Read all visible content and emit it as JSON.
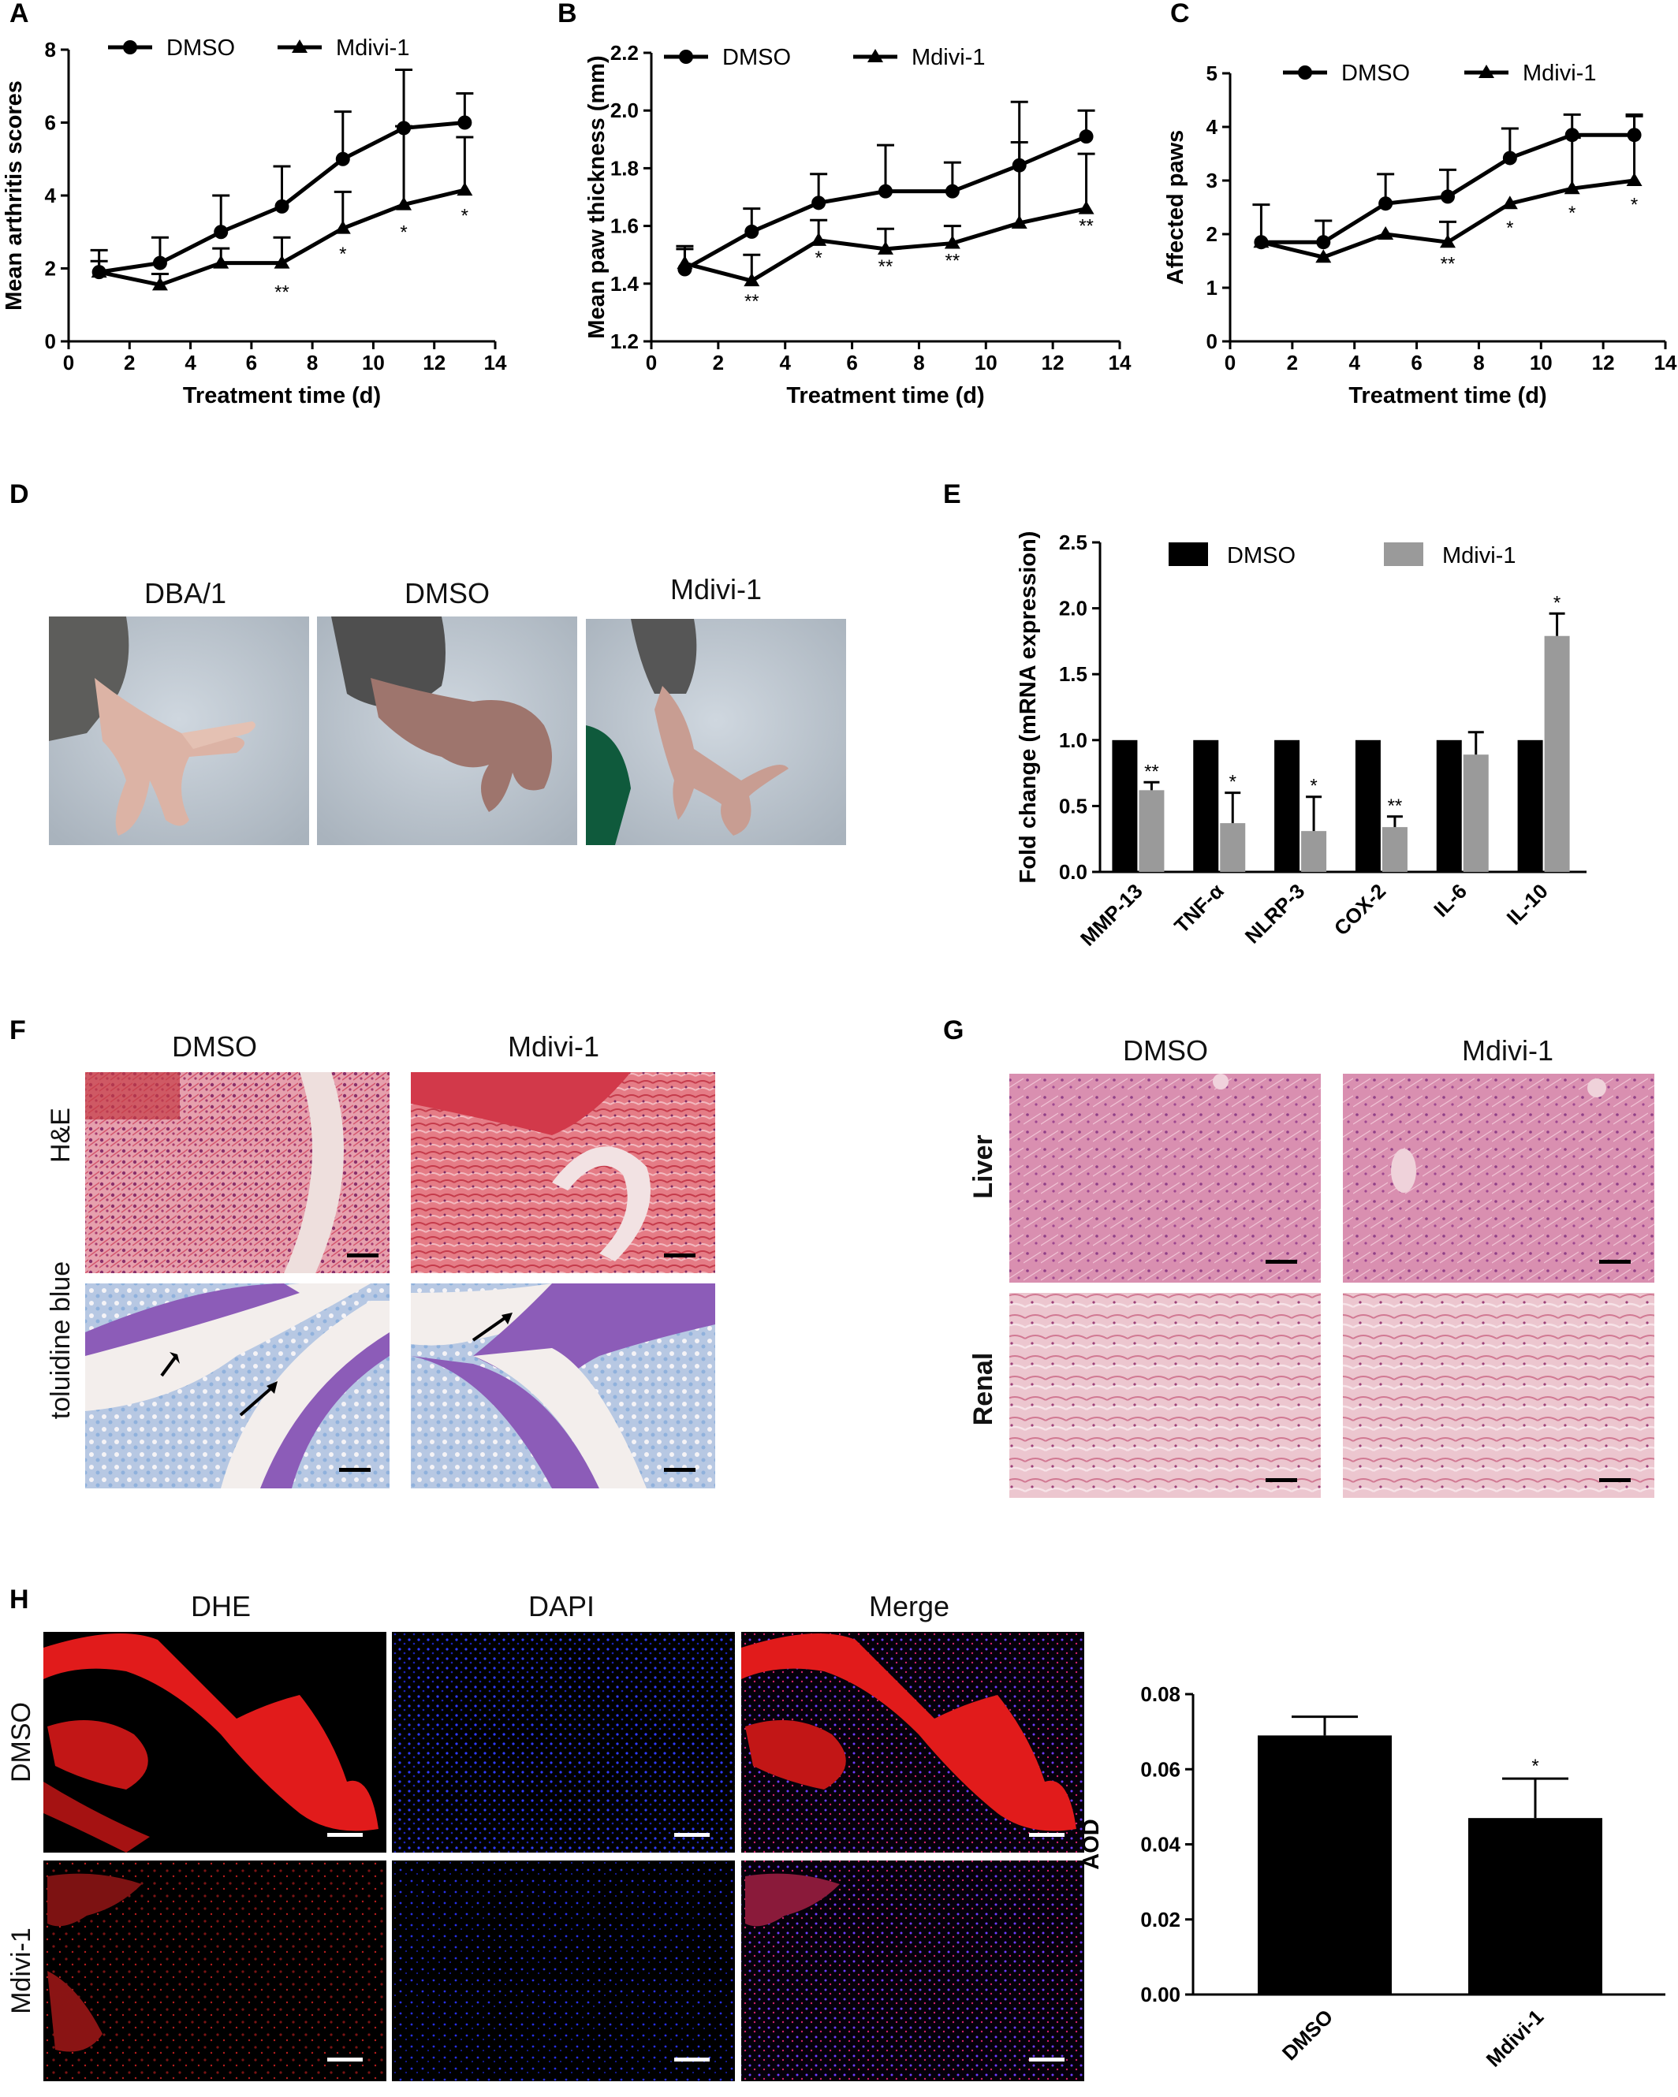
{
  "panels": {
    "A": "A",
    "B": "B",
    "C": "C",
    "D": "D",
    "E": "E",
    "F": "F",
    "G": "G",
    "H": "H"
  },
  "colors": {
    "dmso_bar": "#000000",
    "mdivi_bar": "#9a9a9a",
    "he_stain": "#d46a7e",
    "toluidine": "#8a5fb5",
    "liver": "#d68aa8",
    "renal": "#e7b9c6",
    "dhe": "#e0191a",
    "dapi": "#2a34e0"
  },
  "chart_data": [
    {
      "id": "A",
      "type": "line",
      "xlabel": "Treatment time (d)",
      "ylabel": "Mean arthritis scores",
      "xlim": [
        0,
        14
      ],
      "ylim": [
        0,
        8
      ],
      "xticks": [
        0,
        2,
        4,
        6,
        8,
        10,
        12,
        14
      ],
      "yticks": [
        0,
        2,
        4,
        6,
        8
      ],
      "legend": "top",
      "x": [
        1,
        3,
        5,
        7,
        9,
        11,
        13
      ],
      "series": [
        {
          "name": "DMSO",
          "marker": "circle",
          "values": [
            1.9,
            2.15,
            3.0,
            3.7,
            5.0,
            5.85,
            6.0
          ],
          "err": [
            0.6,
            0.7,
            1.0,
            1.1,
            1.3,
            1.6,
            0.8
          ]
        },
        {
          "name": "Mdivi-1",
          "marker": "triangle",
          "values": [
            1.9,
            1.55,
            2.15,
            2.15,
            3.1,
            3.75,
            4.15
          ],
          "err": [
            0.3,
            0.3,
            0.4,
            0.7,
            1.0,
            2.15,
            1.45
          ]
        }
      ],
      "significance": [
        {
          "x": 7,
          "text": "**",
          "y": 1.35
        },
        {
          "x": 9,
          "text": "*",
          "y": 2.4
        },
        {
          "x": 11,
          "text": "*",
          "y": 3.0
        },
        {
          "x": 13,
          "text": "*",
          "y": 3.45
        }
      ]
    },
    {
      "id": "B",
      "type": "line",
      "xlabel": "Treatment time (d)",
      "ylabel": "Mean paw thickness (mm)",
      "xlim": [
        0,
        14
      ],
      "ylim": [
        1.2,
        2.2
      ],
      "xticks": [
        0,
        2,
        4,
        6,
        8,
        10,
        12,
        14
      ],
      "yticks": [
        1.2,
        1.4,
        1.6,
        1.8,
        2.0,
        2.2
      ],
      "ytick_labels": [
        "1.2",
        "1.4",
        "1.6",
        "1.8",
        "2.0",
        "2.2"
      ],
      "legend": "top",
      "x": [
        1,
        3,
        5,
        7,
        9,
        11,
        13
      ],
      "series": [
        {
          "name": "DMSO",
          "marker": "circle",
          "values": [
            1.45,
            1.58,
            1.68,
            1.72,
            1.72,
            1.81,
            1.91
          ],
          "err": [
            0.07,
            0.08,
            0.1,
            0.16,
            0.1,
            0.22,
            0.09
          ]
        },
        {
          "name": "Mdivi-1",
          "marker": "triangle",
          "values": [
            1.47,
            1.41,
            1.55,
            1.52,
            1.54,
            1.61,
            1.66
          ],
          "err": [
            0.06,
            0.09,
            0.07,
            0.07,
            0.06,
            0.28,
            0.19
          ]
        }
      ],
      "significance": [
        {
          "x": 3,
          "text": "**",
          "y": 1.34
        },
        {
          "x": 5,
          "text": "*",
          "y": 1.49
        },
        {
          "x": 7,
          "text": "**",
          "y": 1.46
        },
        {
          "x": 9,
          "text": "**",
          "y": 1.48
        },
        {
          "x": 13,
          "text": "**",
          "y": 1.6
        }
      ]
    },
    {
      "id": "C",
      "type": "line",
      "xlabel": "Treatment time (d)",
      "ylabel": "Affected paws",
      "xlim": [
        0,
        14
      ],
      "ylim": [
        0,
        5
      ],
      "xticks": [
        0,
        2,
        4,
        6,
        8,
        10,
        12,
        14
      ],
      "yticks": [
        0,
        1,
        2,
        3,
        4,
        5
      ],
      "legend": "top",
      "x": [
        1,
        3,
        5,
        7,
        9,
        11,
        13
      ],
      "series": [
        {
          "name": "DMSO",
          "marker": "circle",
          "values": [
            1.85,
            1.85,
            2.57,
            2.7,
            3.42,
            3.85,
            3.85
          ],
          "err": [
            0.7,
            0.4,
            0.55,
            0.5,
            0.55,
            0.38,
            0.38
          ]
        },
        {
          "name": "Mdivi-1",
          "marker": "triangle",
          "values": [
            1.85,
            1.57,
            2.0,
            1.85,
            2.57,
            2.85,
            3.0
          ],
          "err": [
            0.0,
            0.0,
            0.0,
            0.38,
            0.0,
            0.95,
            1.2
          ]
        }
      ],
      "significance": [
        {
          "x": 7,
          "text": "**",
          "y": 1.45
        },
        {
          "x": 9,
          "text": "*",
          "y": 2.12
        },
        {
          "x": 11,
          "text": "*",
          "y": 2.4
        },
        {
          "x": 13,
          "text": "*",
          "y": 2.55
        }
      ]
    },
    {
      "id": "E",
      "type": "bar",
      "ylabel": "Fold change (mRNA expression)",
      "ylim": [
        0,
        2.5
      ],
      "yticks": [
        0,
        0.5,
        1.0,
        1.5,
        2.0,
        2.5
      ],
      "ytick_labels": [
        "0.0",
        "0.5",
        "1.0",
        "1.5",
        "2.0",
        "2.5"
      ],
      "legend": "top",
      "categories": [
        "MMP-13",
        "TNF-α",
        "NLRP-3",
        "COX-2",
        "IL-6",
        "IL-10"
      ],
      "series": [
        {
          "name": "DMSO",
          "values": [
            1.0,
            1.0,
            1.0,
            1.0,
            1.0,
            1.0
          ],
          "err": [
            0,
            0,
            0,
            0,
            0,
            0
          ]
        },
        {
          "name": "Mdivi-1",
          "values": [
            0.62,
            0.37,
            0.31,
            0.34,
            0.89,
            1.79
          ],
          "err": [
            0.06,
            0.23,
            0.26,
            0.08,
            0.17,
            0.17
          ]
        }
      ],
      "significance": [
        "**",
        "*",
        "*",
        "**",
        "",
        "*"
      ]
    },
    {
      "id": "H-bar",
      "type": "bar",
      "ylabel": "AOD",
      "ylim": [
        0,
        0.08
      ],
      "yticks": [
        0,
        0.02,
        0.04,
        0.06,
        0.08
      ],
      "ytick_labels": [
        "0.00",
        "0.02",
        "0.04",
        "0.06",
        "0.08"
      ],
      "categories": [
        "DMSO",
        "Mdivi-1"
      ],
      "values": [
        0.069,
        0.047
      ],
      "err": [
        0.005,
        0.0105
      ],
      "significance": [
        "",
        "*"
      ]
    }
  ],
  "photos_D": {
    "labels": [
      "DBA/1",
      "DMSO",
      "Mdivi-1"
    ]
  },
  "histology_F": {
    "columns": [
      "DMSO",
      "Mdivi-1"
    ],
    "rows": [
      "H&E",
      "toluidine blue"
    ]
  },
  "histology_G": {
    "columns": [
      "DMSO",
      "Mdivi-1"
    ],
    "rows": [
      "Liver",
      "Renal"
    ]
  },
  "fluor_H": {
    "columns": [
      "DHE",
      "DAPI",
      "Merge"
    ],
    "rows": [
      "DMSO",
      "Mdivi-1"
    ]
  }
}
